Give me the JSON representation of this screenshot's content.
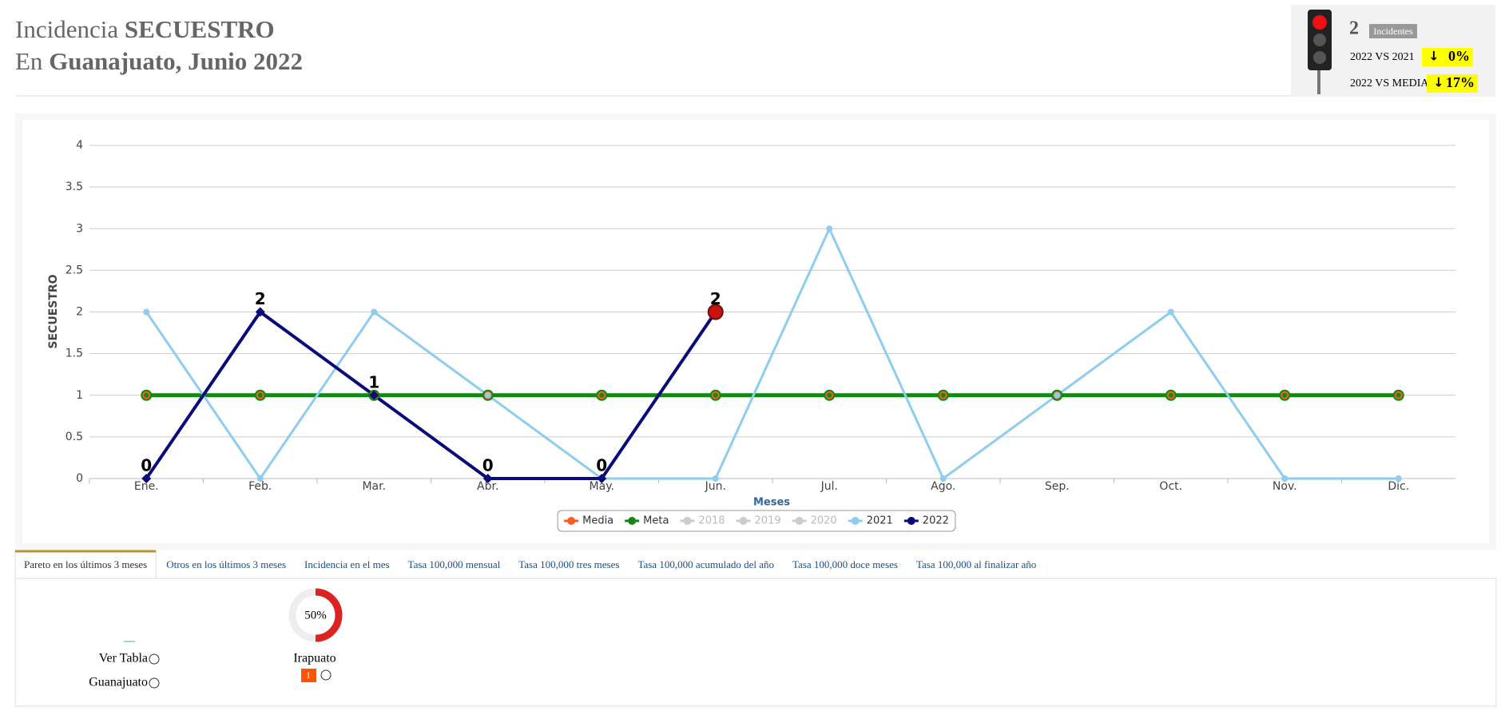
{
  "header": {
    "line1": [
      "Incidencia",
      "SECUESTRO"
    ],
    "line2": [
      "En",
      "Guanajuato, Junio 2022"
    ]
  },
  "kpi": {
    "count": 2,
    "count_label": "Incidentes",
    "rows": [
      {
        "label": "2022 VS 2021",
        "change": {
          "value": 0,
          "label": "0%"
        }
      },
      {
        "label": "2022 VS MEDIA",
        "change": {
          "value": 17,
          "label": "17%"
        }
      }
    ]
  },
  "chart_data": {
    "type": "line",
    "x_label": "Meses",
    "y_label": "SECUESTRO",
    "categories": [
      "Ene.",
      "Feb.",
      "Mar.",
      "Abr.",
      "May.",
      "Jun.",
      "Jul.",
      "Ago.",
      "Sep.",
      "Oct.",
      "Nov.",
      "Dic."
    ],
    "ylim": [
      0,
      4
    ],
    "yticks": [
      0,
      0.5,
      1,
      1.5,
      2,
      2.5,
      3,
      3.5,
      4
    ],
    "grid": true,
    "legend": "bottom",
    "series": [
      {
        "name": "Media",
        "color": "#ff5a1f",
        "values": [
          1,
          1,
          1,
          1,
          1,
          1,
          1,
          1,
          1,
          1,
          1,
          1
        ]
      },
      {
        "name": "Meta",
        "color": "#118811",
        "values": [
          1,
          1,
          1,
          1,
          1,
          1,
          1,
          1,
          1,
          1,
          1,
          1
        ]
      },
      {
        "name": "2018",
        "color": "#cccccc",
        "visible": false,
        "values": [
          null,
          null,
          null,
          null,
          null,
          null,
          null,
          null,
          null,
          null,
          null,
          null
        ]
      },
      {
        "name": "2019",
        "color": "#cccccc",
        "visible": false,
        "values": [
          null,
          null,
          null,
          null,
          null,
          null,
          null,
          null,
          null,
          null,
          null,
          null
        ]
      },
      {
        "name": "2020",
        "color": "#cccccc",
        "visible": false,
        "values": [
          null,
          null,
          null,
          null,
          null,
          null,
          null,
          null,
          null,
          null,
          null,
          null
        ]
      },
      {
        "name": "2021",
        "color": "#8ecdf0",
        "values": [
          2,
          0,
          2,
          1,
          0,
          0,
          3,
          0,
          1,
          2,
          0,
          0
        ]
      },
      {
        "name": "2022",
        "color": "#0a0a7a",
        "data_labels": true,
        "values": [
          0,
          2,
          1,
          0,
          0,
          2,
          null,
          null,
          null,
          null,
          null,
          null
        ]
      }
    ]
  },
  "tabs": [
    "Pareto en los últimos 3 meses",
    "Otros en los últimos 3 meses",
    "Incidencia en el mes",
    "Tasa 100,000 mensual",
    "Tasa 100,000 tres meses",
    "Tasa 100,000 acumulado del año",
    "Tasa 100,000 doce meses",
    "Tasa 100,000 al finalizar año"
  ],
  "pareto": {
    "links": [
      "Ver Tabla",
      "Guanajuato"
    ],
    "city": "Irapuato",
    "percent": 50,
    "percent_label": "50%",
    "count": 1
  }
}
